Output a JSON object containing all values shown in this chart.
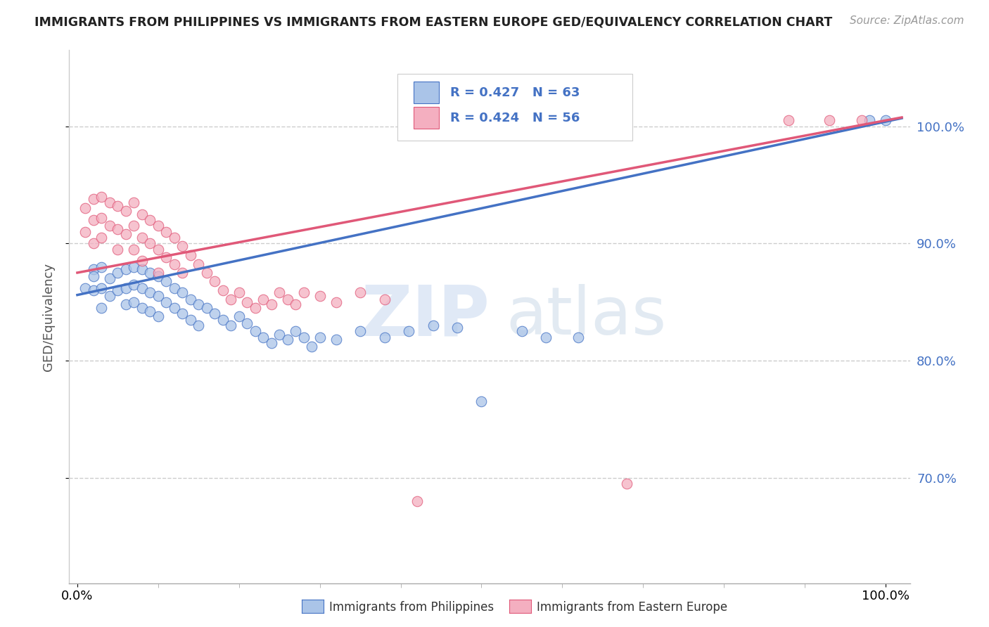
{
  "title": "IMMIGRANTS FROM PHILIPPINES VS IMMIGRANTS FROM EASTERN EUROPE GED/EQUIVALENCY CORRELATION CHART",
  "source": "Source: ZipAtlas.com",
  "ylabel": "GED/Equivalency",
  "yticks": [
    0.7,
    0.8,
    0.9,
    1.0
  ],
  "ytick_labels": [
    "70.0%",
    "80.0%",
    "90.0%",
    "100.0%"
  ],
  "xtick_labels": [
    "0.0%",
    "100.0%"
  ],
  "legend_r1": "R = 0.427",
  "legend_n1": "N = 63",
  "legend_r2": "R = 0.424",
  "legend_n2": "N = 56",
  "color_blue": "#aac4e8",
  "color_pink": "#f4afc0",
  "line_blue": "#4472c4",
  "line_pink": "#e05878",
  "ytick_color": "#4472c4",
  "background": "#ffffff",
  "phil_x": [
    0.01,
    0.02,
    0.02,
    0.02,
    0.03,
    0.03,
    0.03,
    0.04,
    0.04,
    0.05,
    0.05,
    0.06,
    0.06,
    0.06,
    0.07,
    0.07,
    0.07,
    0.08,
    0.08,
    0.08,
    0.09,
    0.09,
    0.09,
    0.1,
    0.1,
    0.1,
    0.11,
    0.11,
    0.12,
    0.12,
    0.13,
    0.13,
    0.14,
    0.14,
    0.15,
    0.15,
    0.16,
    0.17,
    0.18,
    0.19,
    0.2,
    0.21,
    0.22,
    0.23,
    0.24,
    0.25,
    0.26,
    0.27,
    0.28,
    0.29,
    0.3,
    0.32,
    0.35,
    0.38,
    0.41,
    0.44,
    0.47,
    0.5,
    0.55,
    0.58,
    0.62,
    0.98,
    1.0
  ],
  "phil_y": [
    0.862,
    0.878,
    0.86,
    0.872,
    0.88,
    0.862,
    0.845,
    0.87,
    0.855,
    0.875,
    0.86,
    0.878,
    0.862,
    0.848,
    0.88,
    0.865,
    0.85,
    0.878,
    0.862,
    0.845,
    0.875,
    0.858,
    0.842,
    0.872,
    0.855,
    0.838,
    0.868,
    0.85,
    0.862,
    0.845,
    0.858,
    0.84,
    0.852,
    0.835,
    0.848,
    0.83,
    0.845,
    0.84,
    0.835,
    0.83,
    0.838,
    0.832,
    0.825,
    0.82,
    0.815,
    0.822,
    0.818,
    0.825,
    0.82,
    0.812,
    0.82,
    0.818,
    0.825,
    0.82,
    0.825,
    0.83,
    0.828,
    0.765,
    0.825,
    0.82,
    0.82,
    1.005,
    1.005
  ],
  "ee_x": [
    0.01,
    0.01,
    0.02,
    0.02,
    0.02,
    0.03,
    0.03,
    0.03,
    0.04,
    0.04,
    0.05,
    0.05,
    0.05,
    0.06,
    0.06,
    0.07,
    0.07,
    0.07,
    0.08,
    0.08,
    0.08,
    0.09,
    0.09,
    0.1,
    0.1,
    0.1,
    0.11,
    0.11,
    0.12,
    0.12,
    0.13,
    0.13,
    0.14,
    0.15,
    0.16,
    0.17,
    0.18,
    0.19,
    0.2,
    0.21,
    0.22,
    0.23,
    0.24,
    0.25,
    0.26,
    0.27,
    0.28,
    0.3,
    0.32,
    0.35,
    0.38,
    0.42,
    0.68,
    0.88,
    0.93,
    0.97
  ],
  "ee_y": [
    0.93,
    0.91,
    0.938,
    0.92,
    0.9,
    0.94,
    0.922,
    0.905,
    0.935,
    0.915,
    0.932,
    0.912,
    0.895,
    0.928,
    0.908,
    0.935,
    0.915,
    0.895,
    0.925,
    0.905,
    0.885,
    0.92,
    0.9,
    0.915,
    0.895,
    0.875,
    0.91,
    0.888,
    0.905,
    0.882,
    0.898,
    0.875,
    0.89,
    0.882,
    0.875,
    0.868,
    0.86,
    0.852,
    0.858,
    0.85,
    0.845,
    0.852,
    0.848,
    0.858,
    0.852,
    0.848,
    0.858,
    0.855,
    0.85,
    0.858,
    0.852,
    0.68,
    0.695,
    1.005,
    1.005,
    1.005
  ]
}
